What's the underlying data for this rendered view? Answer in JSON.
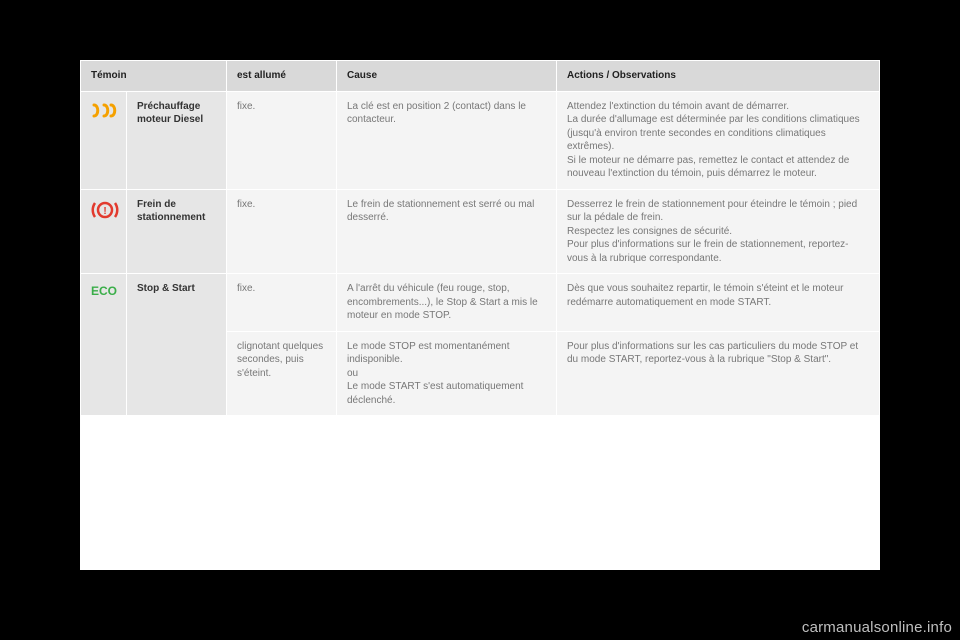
{
  "headers": {
    "temoin": "Témoin",
    "etat": "est allumé",
    "cause": "Cause",
    "actions": "Actions / Observations"
  },
  "rows": [
    {
      "icon": "preheat",
      "label": "Préchauffage moteur Diesel",
      "etat": "fixe.",
      "cause": "La clé est en position 2 (contact) dans le contacteur.",
      "action": "Attendez l'extinction du témoin avant de démarrer.\nLa durée d'allumage est déterminée par les conditions climatiques (jusqu'à environ trente secondes en conditions climatiques extrêmes).\nSi le moteur ne démarre pas, remettez le contact et attendez de nouveau l'extinction du témoin, puis démarrez le moteur."
    },
    {
      "icon": "brake",
      "label": "Frein de stationnement",
      "etat": "fixe.",
      "cause": "Le frein de stationnement est serré ou mal desserré.",
      "action": "Desserrez le frein de stationnement pour éteindre le témoin ; pied sur la pédale de frein.\nRespectez les consignes de sécurité.\nPour plus d'informations sur le frein de stationnement, reportez-vous à la rubrique correspondante."
    },
    {
      "icon": "eco",
      "label": "Stop & Start",
      "sub": [
        {
          "etat": "fixe.",
          "cause": "A l'arrêt du véhicule (feu rouge, stop, encombrements...), le Stop & Start a mis le moteur en mode STOP.",
          "action": "Dès que vous souhaitez repartir, le témoin s'éteint et le moteur redémarre automatiquement en mode START."
        },
        {
          "etat": "clignotant quelques secondes, puis s'éteint.",
          "cause": "Le mode STOP est momentanément indisponible.\nou\nLe mode START s'est automatiquement déclenché.",
          "action": "Pour plus d'informations sur les cas particuliers du mode STOP et du mode START, reportez-vous à la rubrique \"Stop & Start\"."
        }
      ]
    }
  ],
  "watermark": "carmanualsonline.info",
  "colors": {
    "preheat": "#f5a100",
    "brake": "#e23a2e",
    "eco": "#3aae49"
  }
}
